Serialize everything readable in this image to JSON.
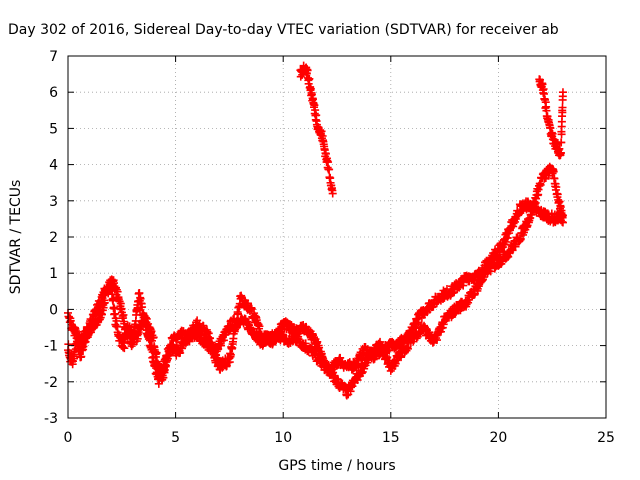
{
  "chart_data": {
    "type": "scatter",
    "title": "Day 302 of 2016, Sidereal Day-to-day VTEC variation (SDTVAR) for receiver ab",
    "xlabel": "GPS time / hours",
    "ylabel": "SDTVAR / TECUs",
    "xlim": [
      0,
      25
    ],
    "ylim": [
      -3,
      7
    ],
    "xticks": [
      "0",
      "5",
      "10",
      "15",
      "20",
      "25"
    ],
    "yticks": [
      "-3",
      "-2",
      "-1",
      "0",
      "1",
      "2",
      "3",
      "4",
      "5",
      "6",
      "7"
    ],
    "grid": true,
    "legend": "none",
    "marker": "+",
    "color": "#ff0000",
    "series": [
      {
        "x": [
          0.0,
          0.1,
          0.2,
          0.3,
          0.4,
          0.5,
          0.6,
          0.7,
          0.8,
          0.9,
          1.0,
          1.2,
          1.4,
          1.6,
          1.8,
          2.0,
          2.2,
          2.4,
          2.6,
          2.8,
          3.0,
          3.2,
          3.4,
          3.6,
          3.8,
          4.0,
          4.2,
          4.4,
          4.6,
          4.8,
          5.0,
          5.3,
          5.6,
          6.0,
          6.4,
          6.8,
          7.2,
          7.6,
          8.0,
          8.3,
          8.6,
          9.0,
          9.4,
          9.8,
          10.2,
          10.6,
          11.0,
          11.4,
          11.8,
          12.2,
          12.6,
          13.0,
          13.4,
          13.8,
          14.2,
          14.6,
          15.0,
          15.4,
          15.8,
          16.2,
          16.6,
          17.0,
          17.4,
          17.8,
          18.2,
          18.6,
          19.0,
          19.4,
          19.8,
          20.2,
          20.6,
          21.0,
          21.4,
          21.8,
          22.2,
          22.6,
          23.0
        ],
        "y": [
          -1.0,
          -1.4,
          -1.5,
          -1.2,
          -0.9,
          -1.1,
          -1.3,
          -1.0,
          -0.8,
          -0.7,
          -0.6,
          -0.5,
          -0.3,
          0.0,
          0.5,
          0.7,
          -0.3,
          -0.8,
          -1.0,
          -0.5,
          -0.7,
          -0.8,
          -0.4,
          -0.2,
          -0.6,
          -0.9,
          -1.6,
          -1.9,
          -1.3,
          -0.9,
          -0.8,
          -0.7,
          -0.8,
          -0.7,
          -0.9,
          -1.2,
          -0.8,
          -0.4,
          -0.3,
          -0.4,
          -0.6,
          -0.9,
          -0.8,
          -0.7,
          -0.9,
          -0.8,
          -1.0,
          -1.2,
          -1.5,
          -1.7,
          -1.4,
          -1.6,
          -1.5,
          -1.1,
          -1.3,
          -1.1,
          -1.0,
          -0.9,
          -0.8,
          -0.3,
          0.0,
          0.2,
          0.4,
          0.5,
          0.7,
          0.9,
          0.9,
          1.2,
          1.5,
          1.8,
          2.3,
          2.8,
          2.9,
          2.7,
          2.6,
          2.5,
          2.6
        ]
      },
      {
        "x": [
          0.0,
          0.3,
          0.6,
          0.9,
          1.2,
          1.5,
          1.8,
          2.1,
          2.4,
          2.7,
          3.0,
          3.3,
          3.6,
          3.9,
          4.2,
          4.5,
          4.8,
          5.1,
          5.5,
          6.0,
          6.5,
          7.0,
          7.5,
          8.0,
          8.5,
          9.0,
          9.5,
          10.0,
          10.5,
          11.0,
          11.5,
          12.0,
          12.5,
          13.0,
          13.5,
          14.0,
          14.5,
          15.0,
          15.5,
          16.0,
          16.5,
          17.0,
          17.5,
          18.0,
          18.5,
          19.0,
          19.5,
          20.0,
          20.5,
          21.0,
          21.5,
          22.0,
          22.5,
          23.0
        ],
        "y": [
          -0.2,
          -0.6,
          -0.9,
          -0.5,
          -0.2,
          0.2,
          0.6,
          0.8,
          0.2,
          -0.6,
          -1.0,
          0.4,
          -0.4,
          -1.2,
          -2.0,
          -1.5,
          -1.0,
          -1.2,
          -0.8,
          -0.4,
          -0.7,
          -1.6,
          -1.4,
          0.3,
          0.0,
          -0.7,
          -0.9,
          -0.4,
          -0.6,
          -0.5,
          -0.9,
          -1.6,
          -2.0,
          -2.3,
          -1.8,
          -1.3,
          -1.0,
          -1.6,
          -1.2,
          -0.8,
          -0.5,
          -0.9,
          -0.3,
          0.0,
          0.2,
          0.6,
          1.1,
          1.3,
          1.6,
          2.0,
          2.6,
          3.6,
          3.9,
          2.4
        ]
      },
      {
        "x": [
          10.8,
          10.9,
          11.0,
          11.1,
          11.2,
          11.3,
          11.4,
          11.5,
          11.6,
          11.7,
          11.8,
          11.9,
          12.0,
          12.1,
          12.2,
          12.3
        ],
        "y": [
          6.5,
          6.6,
          6.7,
          6.6,
          6.3,
          6.0,
          5.7,
          5.4,
          5.1,
          4.9,
          4.8,
          4.5,
          4.2,
          3.9,
          3.6,
          3.2
        ]
      },
      {
        "x": [
          21.9,
          22.0,
          22.1,
          22.2,
          22.3,
          22.4,
          22.5,
          22.6,
          22.7,
          22.8,
          22.9,
          23.0
        ],
        "y": [
          6.3,
          6.2,
          6.0,
          5.6,
          5.3,
          5.0,
          4.8,
          4.6,
          4.5,
          4.4,
          4.3,
          6.0
        ]
      }
    ]
  }
}
